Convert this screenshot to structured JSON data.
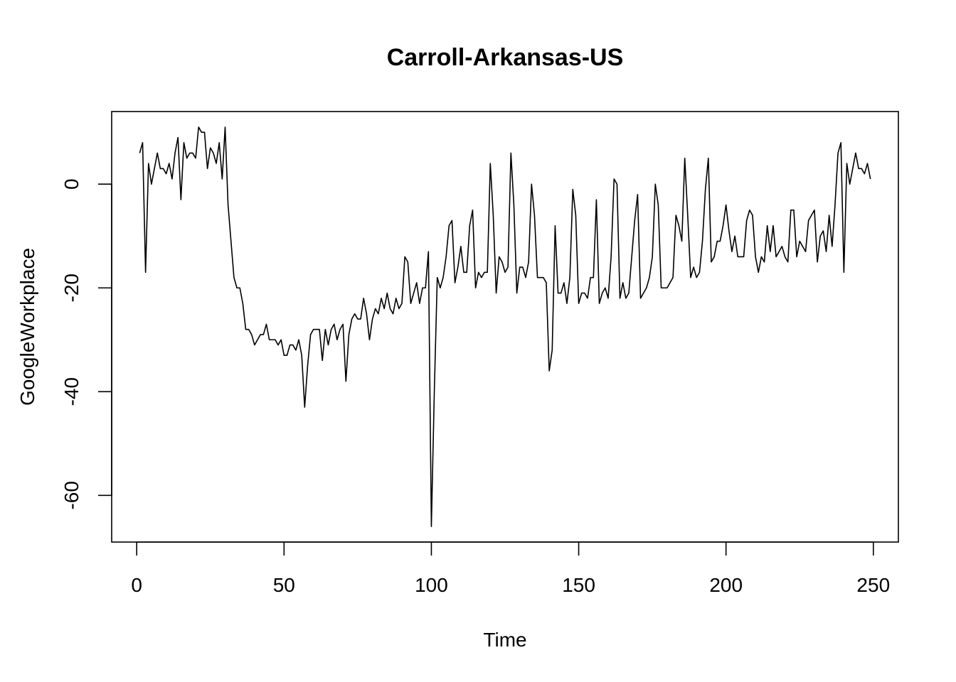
{
  "chart_data": {
    "type": "line",
    "title": "Carroll-Arkansas-US",
    "xlabel": "Time",
    "ylabel": "GoogleWorkplace",
    "xlim": [
      -8.5,
      258.5
    ],
    "ylim": [
      -69,
      14
    ],
    "xticks": [
      0,
      50,
      100,
      150,
      200,
      250
    ],
    "yticks": [
      -60,
      -40,
      -20,
      0
    ],
    "grid": false,
    "series": [
      {
        "x_start": 1,
        "values": [
          6,
          8,
          -17,
          4,
          0,
          3,
          6,
          3,
          3,
          2,
          4,
          1,
          6,
          9,
          -3,
          8,
          5,
          6,
          6,
          5,
          11,
          10,
          10,
          3,
          7,
          6,
          4,
          8,
          1,
          11,
          -4,
          -11,
          -18,
          -20,
          -20,
          -23,
          -28,
          -28,
          -29,
          -31,
          -30,
          -29,
          -29,
          -27,
          -30,
          -30,
          -30,
          -31,
          -30,
          -33,
          -33,
          -31,
          -31,
          -32,
          -30,
          -33,
          -43,
          -35,
          -29,
          -28,
          -28,
          -28,
          -34,
          -28,
          -31,
          -28,
          -27,
          -30,
          -28,
          -27,
          -38,
          -29,
          -26,
          -25,
          -26,
          -26,
          -22,
          -25,
          -30,
          -26,
          -24,
          -25,
          -22,
          -24,
          -21,
          -24,
          -25,
          -22,
          -24,
          -23,
          -14,
          -15,
          -23,
          -21,
          -19,
          -23,
          -20,
          -20,
          -13,
          -66,
          -40,
          -18,
          -20,
          -18,
          -14,
          -8,
          -7,
          -19,
          -16,
          -12,
          -17,
          -17,
          -8,
          -5,
          -20,
          -17,
          -18,
          -17,
          -17,
          4,
          -6,
          -21,
          -14,
          -15,
          -17,
          -16,
          6,
          -4,
          -21,
          -16,
          -16,
          -18,
          -15,
          0,
          -6,
          -18,
          -18,
          -18,
          -19,
          -36,
          -32,
          -8,
          -21,
          -21,
          -19,
          -23,
          -18,
          -1,
          -6,
          -23,
          -21,
          -21,
          -22,
          -18,
          -18,
          -3,
          -23,
          -21,
          -20,
          -22,
          -14,
          1,
          0,
          -22,
          -19,
          -22,
          -21,
          -14,
          -7,
          -2,
          -22,
          -21,
          -20,
          -18,
          -14,
          0,
          -4,
          -20,
          -20,
          -20,
          -19,
          -18,
          -6,
          -8,
          -11,
          5,
          -6,
          -18,
          -16,
          -18,
          -17,
          -11,
          -1,
          5,
          -15,
          -14,
          -11,
          -11,
          -8,
          -4,
          -9,
          -13,
          -10,
          -14,
          -14,
          -14,
          -7,
          -5,
          -6,
          -14,
          -17,
          -14,
          -15,
          -8,
          -13,
          -8,
          -14,
          -13,
          -12,
          -14,
          -15,
          -5,
          -5,
          -14,
          -11,
          -12,
          -13,
          -7,
          -6,
          -5,
          -15,
          -10,
          -9,
          -13,
          -6,
          -12,
          -4,
          6,
          8,
          -17,
          4,
          0,
          3,
          6,
          3,
          3,
          2,
          4,
          1
        ]
      }
    ]
  }
}
